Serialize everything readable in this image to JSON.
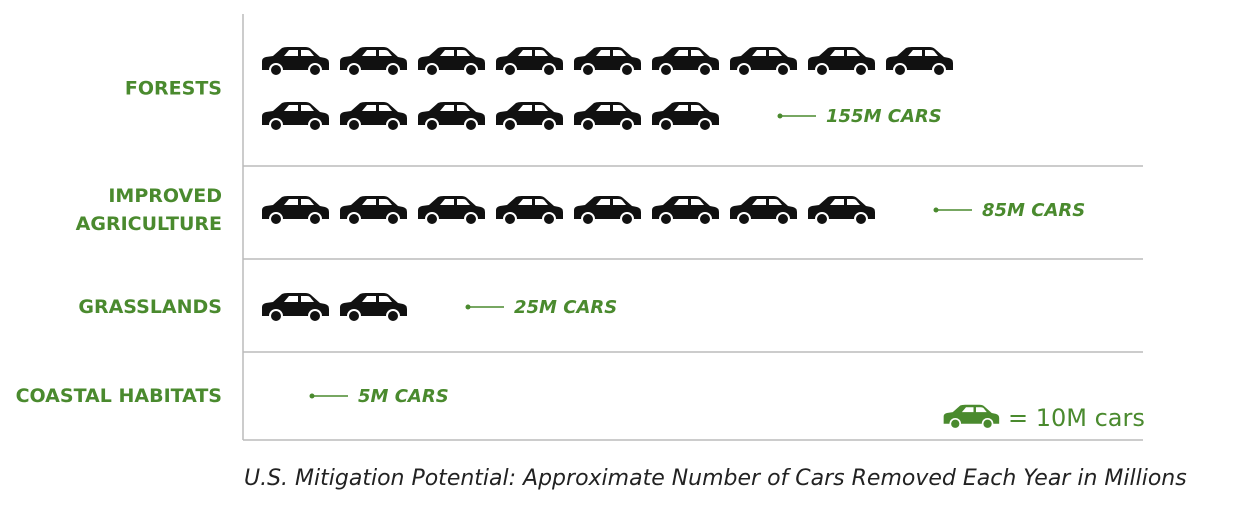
{
  "chart_data": {
    "type": "bar",
    "unit_per_icon": 10,
    "categories": [
      "FORESTS",
      "IMPROVED AGRICULTURE",
      "GRASSLANDS",
      "COASTAL HABITATS"
    ],
    "category_lines": [
      [
        "FORESTS"
      ],
      [
        "IMPROVED",
        "AGRICULTURE"
      ],
      [
        "GRASSLANDS"
      ],
      [
        "COASTAL HABITATS"
      ]
    ],
    "values": [
      155,
      85,
      25,
      5
    ],
    "value_labels": [
      "155M CARS",
      "85M CARS",
      "25M CARS",
      "5M CARS"
    ],
    "legend": {
      "icon": "car-icon",
      "label": "= 10M cars"
    },
    "caption": {
      "italic_part": "U.S. Mitigation Potential:",
      "rest": " Approximate Number of Cars Removed Each Year in Millions"
    },
    "colors": {
      "accent_green": "#4a8a2e",
      "icon_black": "#111111",
      "axis_line": "#bbbbbb",
      "caption_text": "#222222"
    }
  }
}
